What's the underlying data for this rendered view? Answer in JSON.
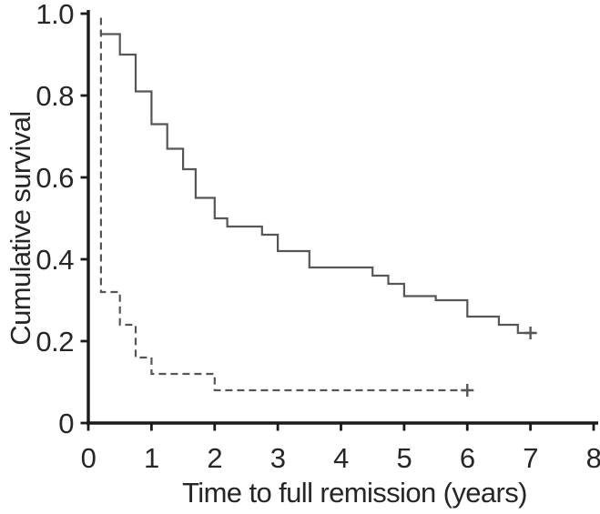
{
  "chart_data": {
    "type": "line",
    "subtype": "kaplan-meier-step-survival",
    "title": "",
    "xlabel": "Time to full remission (years)",
    "ylabel": "Cumulative survival",
    "xlim": [
      0,
      8
    ],
    "ylim": [
      0,
      1.0
    ],
    "grid": false,
    "legend_position": "none",
    "xticks": {
      "values": [
        0,
        1,
        2,
        3,
        4,
        5,
        6,
        7,
        8
      ],
      "labels": [
        "0",
        "1",
        "2",
        "3",
        "4",
        "5",
        "6",
        "7",
        "8"
      ]
    },
    "yticks": {
      "values": [
        0,
        0.2,
        0.4,
        0.6,
        0.8,
        1.0
      ],
      "labels": [
        "0",
        "0.2",
        "0.4",
        "0.6",
        "0.8",
        "1.0"
      ]
    },
    "colors": {
      "axis": "#1a1a1a",
      "curve": "#565656",
      "text": "#262626",
      "background": "#ffffff"
    },
    "series": [
      {
        "name": "upper-solid-curve",
        "line_style": "solid",
        "color": "#565656",
        "points": [
          [
            0.2,
            0.96
          ],
          [
            0.2,
            0.95
          ],
          [
            0.5,
            0.9
          ],
          [
            0.75,
            0.81
          ],
          [
            1.0,
            0.73
          ],
          [
            1.25,
            0.67
          ],
          [
            1.5,
            0.62
          ],
          [
            1.7,
            0.55
          ],
          [
            2.0,
            0.5
          ],
          [
            2.2,
            0.48
          ],
          [
            2.75,
            0.46
          ],
          [
            3.0,
            0.42
          ],
          [
            3.5,
            0.38
          ],
          [
            4.5,
            0.36
          ],
          [
            4.75,
            0.34
          ],
          [
            5.0,
            0.31
          ],
          [
            5.5,
            0.3
          ],
          [
            6.0,
            0.26
          ],
          [
            6.5,
            0.24
          ],
          [
            6.8,
            0.22
          ]
        ],
        "end_time": 7.05,
        "censor_marks": [
          [
            7.0,
            0.22
          ]
        ],
        "censor_glyph": "plus"
      },
      {
        "name": "lower-dashed-curve",
        "line_style": "dashed",
        "color": "#565656",
        "points": [
          [
            0.2,
            0.99
          ],
          [
            0.2,
            0.32
          ],
          [
            0.5,
            0.24
          ],
          [
            0.75,
            0.16
          ],
          [
            1.0,
            0.12
          ],
          [
            2.0,
            0.08
          ]
        ],
        "end_time": 6.05,
        "censor_marks": [
          [
            6.0,
            0.08
          ]
        ],
        "censor_glyph": "plus"
      }
    ]
  }
}
